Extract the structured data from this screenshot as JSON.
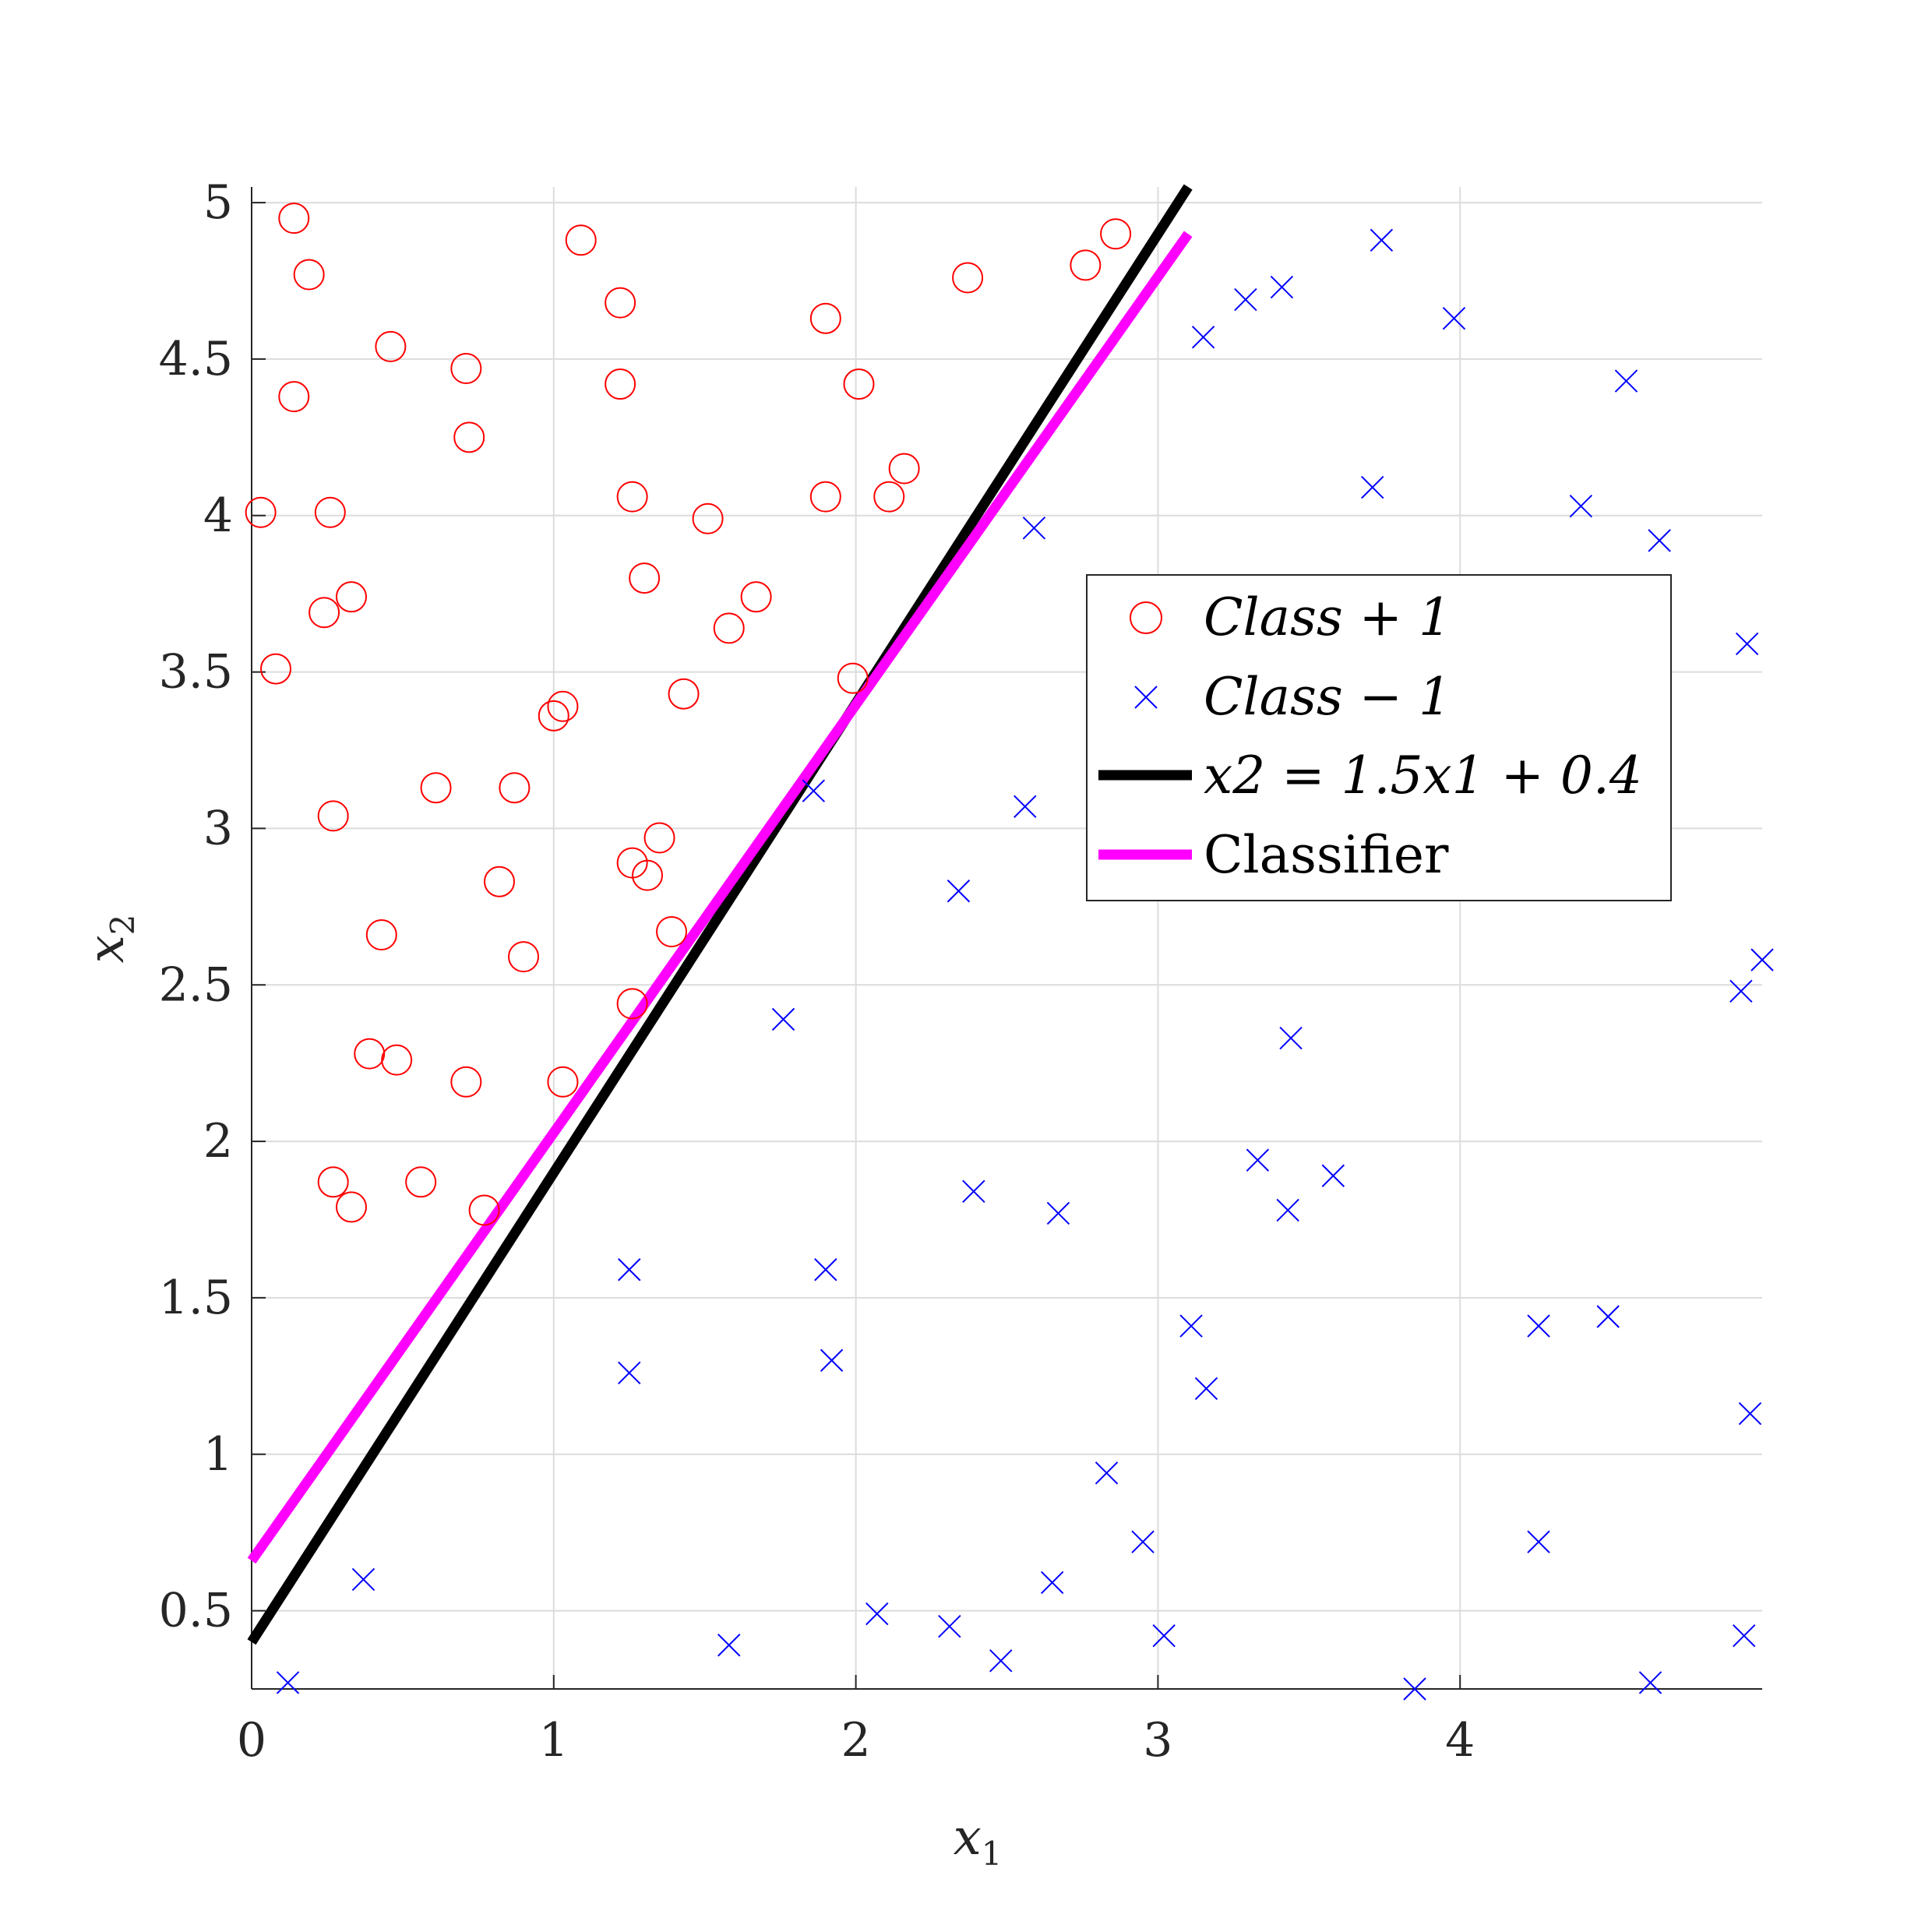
{
  "chart_data": {
    "type": "scatter",
    "title": "",
    "xlabel": "x",
    "xlabel_sub": "1",
    "ylabel": "x",
    "ylabel_sub": "2",
    "xlim": [
      0,
      5
    ],
    "ylim": [
      0.25,
      5.05
    ],
    "xticks": [
      0,
      1,
      2,
      3,
      4
    ],
    "xtick_labels": [
      "0",
      "1",
      "2",
      "3",
      "4"
    ],
    "yticks": [
      0.5,
      1,
      1.5,
      2,
      2.5,
      3,
      3.5,
      4,
      4.5,
      5
    ],
    "ytick_labels": [
      "0.5",
      "1",
      "1.5",
      "2",
      "2.5",
      "3",
      "3.5",
      "4",
      "4.5",
      "5"
    ],
    "grid": true,
    "legend_position": "right",
    "series": [
      {
        "name": "Class +1",
        "marker": "circle",
        "color": "#ff0000",
        "points": [
          [
            0.14,
            4.95
          ],
          [
            0.19,
            4.77
          ],
          [
            1.09,
            4.88
          ],
          [
            1.22,
            4.68
          ],
          [
            0.46,
            4.54
          ],
          [
            0.71,
            4.47
          ],
          [
            0.14,
            4.38
          ],
          [
            0.72,
            4.25
          ],
          [
            1.22,
            4.42
          ],
          [
            1.9,
            4.63
          ],
          [
            2.01,
            4.42
          ],
          [
            2.37,
            4.76
          ],
          [
            2.76,
            4.8
          ],
          [
            2.86,
            4.9
          ],
          [
            0.03,
            4.01
          ],
          [
            0.26,
            4.01
          ],
          [
            1.26,
            4.06
          ],
          [
            1.9,
            4.06
          ],
          [
            2.11,
            4.06
          ],
          [
            2.16,
            4.15
          ],
          [
            1.51,
            3.99
          ],
          [
            0.24,
            3.69
          ],
          [
            0.33,
            3.74
          ],
          [
            1.3,
            3.8
          ],
          [
            1.58,
            3.64
          ],
          [
            1.67,
            3.74
          ],
          [
            0.08,
            3.51
          ],
          [
            1.43,
            3.43
          ],
          [
            1.99,
            3.48
          ],
          [
            1.0,
            3.36
          ],
          [
            1.03,
            3.39
          ],
          [
            0.61,
            3.13
          ],
          [
            0.87,
            3.13
          ],
          [
            0.27,
            3.04
          ],
          [
            1.35,
            2.97
          ],
          [
            1.26,
            2.89
          ],
          [
            1.31,
            2.85
          ],
          [
            0.82,
            2.83
          ],
          [
            1.39,
            2.67
          ],
          [
            0.43,
            2.66
          ],
          [
            0.9,
            2.59
          ],
          [
            1.26,
            2.44
          ],
          [
            0.39,
            2.28
          ],
          [
            0.48,
            2.26
          ],
          [
            0.71,
            2.19
          ],
          [
            1.03,
            2.19
          ],
          [
            0.27,
            1.87
          ],
          [
            0.56,
            1.87
          ],
          [
            0.33,
            1.79
          ],
          [
            0.77,
            1.78
          ]
        ]
      },
      {
        "name": "Class −1",
        "marker": "x",
        "color": "#0000ff",
        "points": [
          [
            3.74,
            4.88
          ],
          [
            3.41,
            4.73
          ],
          [
            3.29,
            4.69
          ],
          [
            3.98,
            4.63
          ],
          [
            3.15,
            4.57
          ],
          [
            4.55,
            4.43
          ],
          [
            3.71,
            4.09
          ],
          [
            4.4,
            4.03
          ],
          [
            2.59,
            3.96
          ],
          [
            4.66,
            3.92
          ],
          [
            4.95,
            3.59
          ],
          [
            1.86,
            3.12
          ],
          [
            2.56,
            3.07
          ],
          [
            2.34,
            2.8
          ],
          [
            5.0,
            2.58
          ],
          [
            4.93,
            2.48
          ],
          [
            1.76,
            2.39
          ],
          [
            3.44,
            2.33
          ],
          [
            3.33,
            1.94
          ],
          [
            3.58,
            1.89
          ],
          [
            2.39,
            1.84
          ],
          [
            2.67,
            1.77
          ],
          [
            3.43,
            1.78
          ],
          [
            1.25,
            1.59
          ],
          [
            1.9,
            1.59
          ],
          [
            4.26,
            1.41
          ],
          [
            4.49,
            1.44
          ],
          [
            3.11,
            1.41
          ],
          [
            1.92,
            1.3
          ],
          [
            1.25,
            1.26
          ],
          [
            3.16,
            1.21
          ],
          [
            4.96,
            1.13
          ],
          [
            2.83,
            0.94
          ],
          [
            2.95,
            0.72
          ],
          [
            4.26,
            0.72
          ],
          [
            2.65,
            0.59
          ],
          [
            0.37,
            0.6
          ],
          [
            2.07,
            0.49
          ],
          [
            2.31,
            0.45
          ],
          [
            3.02,
            0.42
          ],
          [
            4.94,
            0.42
          ],
          [
            1.58,
            0.39
          ],
          [
            2.48,
            0.34
          ],
          [
            0.12,
            0.27
          ],
          [
            3.85,
            0.25
          ],
          [
            4.63,
            0.27
          ]
        ]
      },
      {
        "name": "x2 = 1.5x1 + 0.4",
        "type": "line",
        "color": "#000000",
        "x": [
          0,
          3.1
        ],
        "y": [
          0.4,
          5.05
        ]
      },
      {
        "name": "Classifier",
        "type": "line",
        "color": "#ff00ff",
        "x": [
          0,
          3.1
        ],
        "y": [
          0.66,
          4.9
        ]
      }
    ],
    "legend": {
      "class_pos_text": "Class + 1",
      "class_neg_text": "Class − 1",
      "line_true_text": "x2 = 1.5x1 + 0.4",
      "classifier_text": "Classifier"
    }
  }
}
